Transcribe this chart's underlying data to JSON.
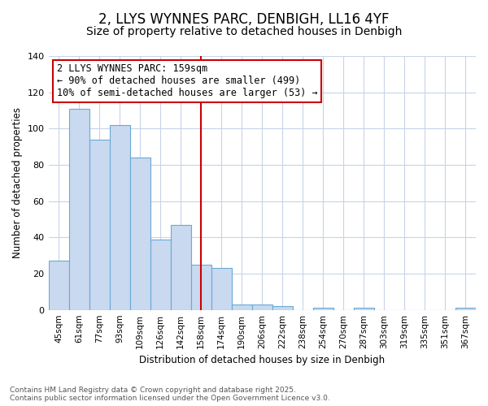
{
  "title_line1": "2, LLYS WYNNES PARC, DENBIGH, LL16 4YF",
  "title_line2": "Size of property relative to detached houses in Denbigh",
  "xlabel": "Distribution of detached houses by size in Denbigh",
  "ylabel": "Number of detached properties",
  "categories": [
    "45sqm",
    "61sqm",
    "77sqm",
    "93sqm",
    "109sqm",
    "126sqm",
    "142sqm",
    "158sqm",
    "174sqm",
    "190sqm",
    "206sqm",
    "222sqm",
    "238sqm",
    "254sqm",
    "270sqm",
    "287sqm",
    "303sqm",
    "319sqm",
    "335sqm",
    "351sqm",
    "367sqm"
  ],
  "values": [
    27,
    111,
    94,
    102,
    84,
    39,
    47,
    25,
    23,
    3,
    3,
    2,
    0,
    1,
    0,
    1,
    0,
    0,
    0,
    0,
    1
  ],
  "bar_color": "#c8d9f0",
  "bar_edge_color": "#6aaad4",
  "vline_x_index": 7,
  "vline_color": "#cc0000",
  "annotation_title": "2 LLYS WYNNES PARC: 159sqm",
  "annotation_line2": "← 90% of detached houses are smaller (499)",
  "annotation_line3": "10% of semi-detached houses are larger (53) →",
  "annotation_box_color": "#cc0000",
  "ylim": [
    0,
    140
  ],
  "yticks": [
    0,
    20,
    40,
    60,
    80,
    100,
    120,
    140
  ],
  "footer_line1": "Contains HM Land Registry data © Crown copyright and database right 2025.",
  "footer_line2": "Contains public sector information licensed under the Open Government Licence v3.0.",
  "bg_color": "#ffffff",
  "plot_bg_color": "#ffffff",
  "grid_color": "#c8d4e8",
  "title1_fontsize": 12,
  "title2_fontsize": 10,
  "annotation_fontsize": 8.5
}
